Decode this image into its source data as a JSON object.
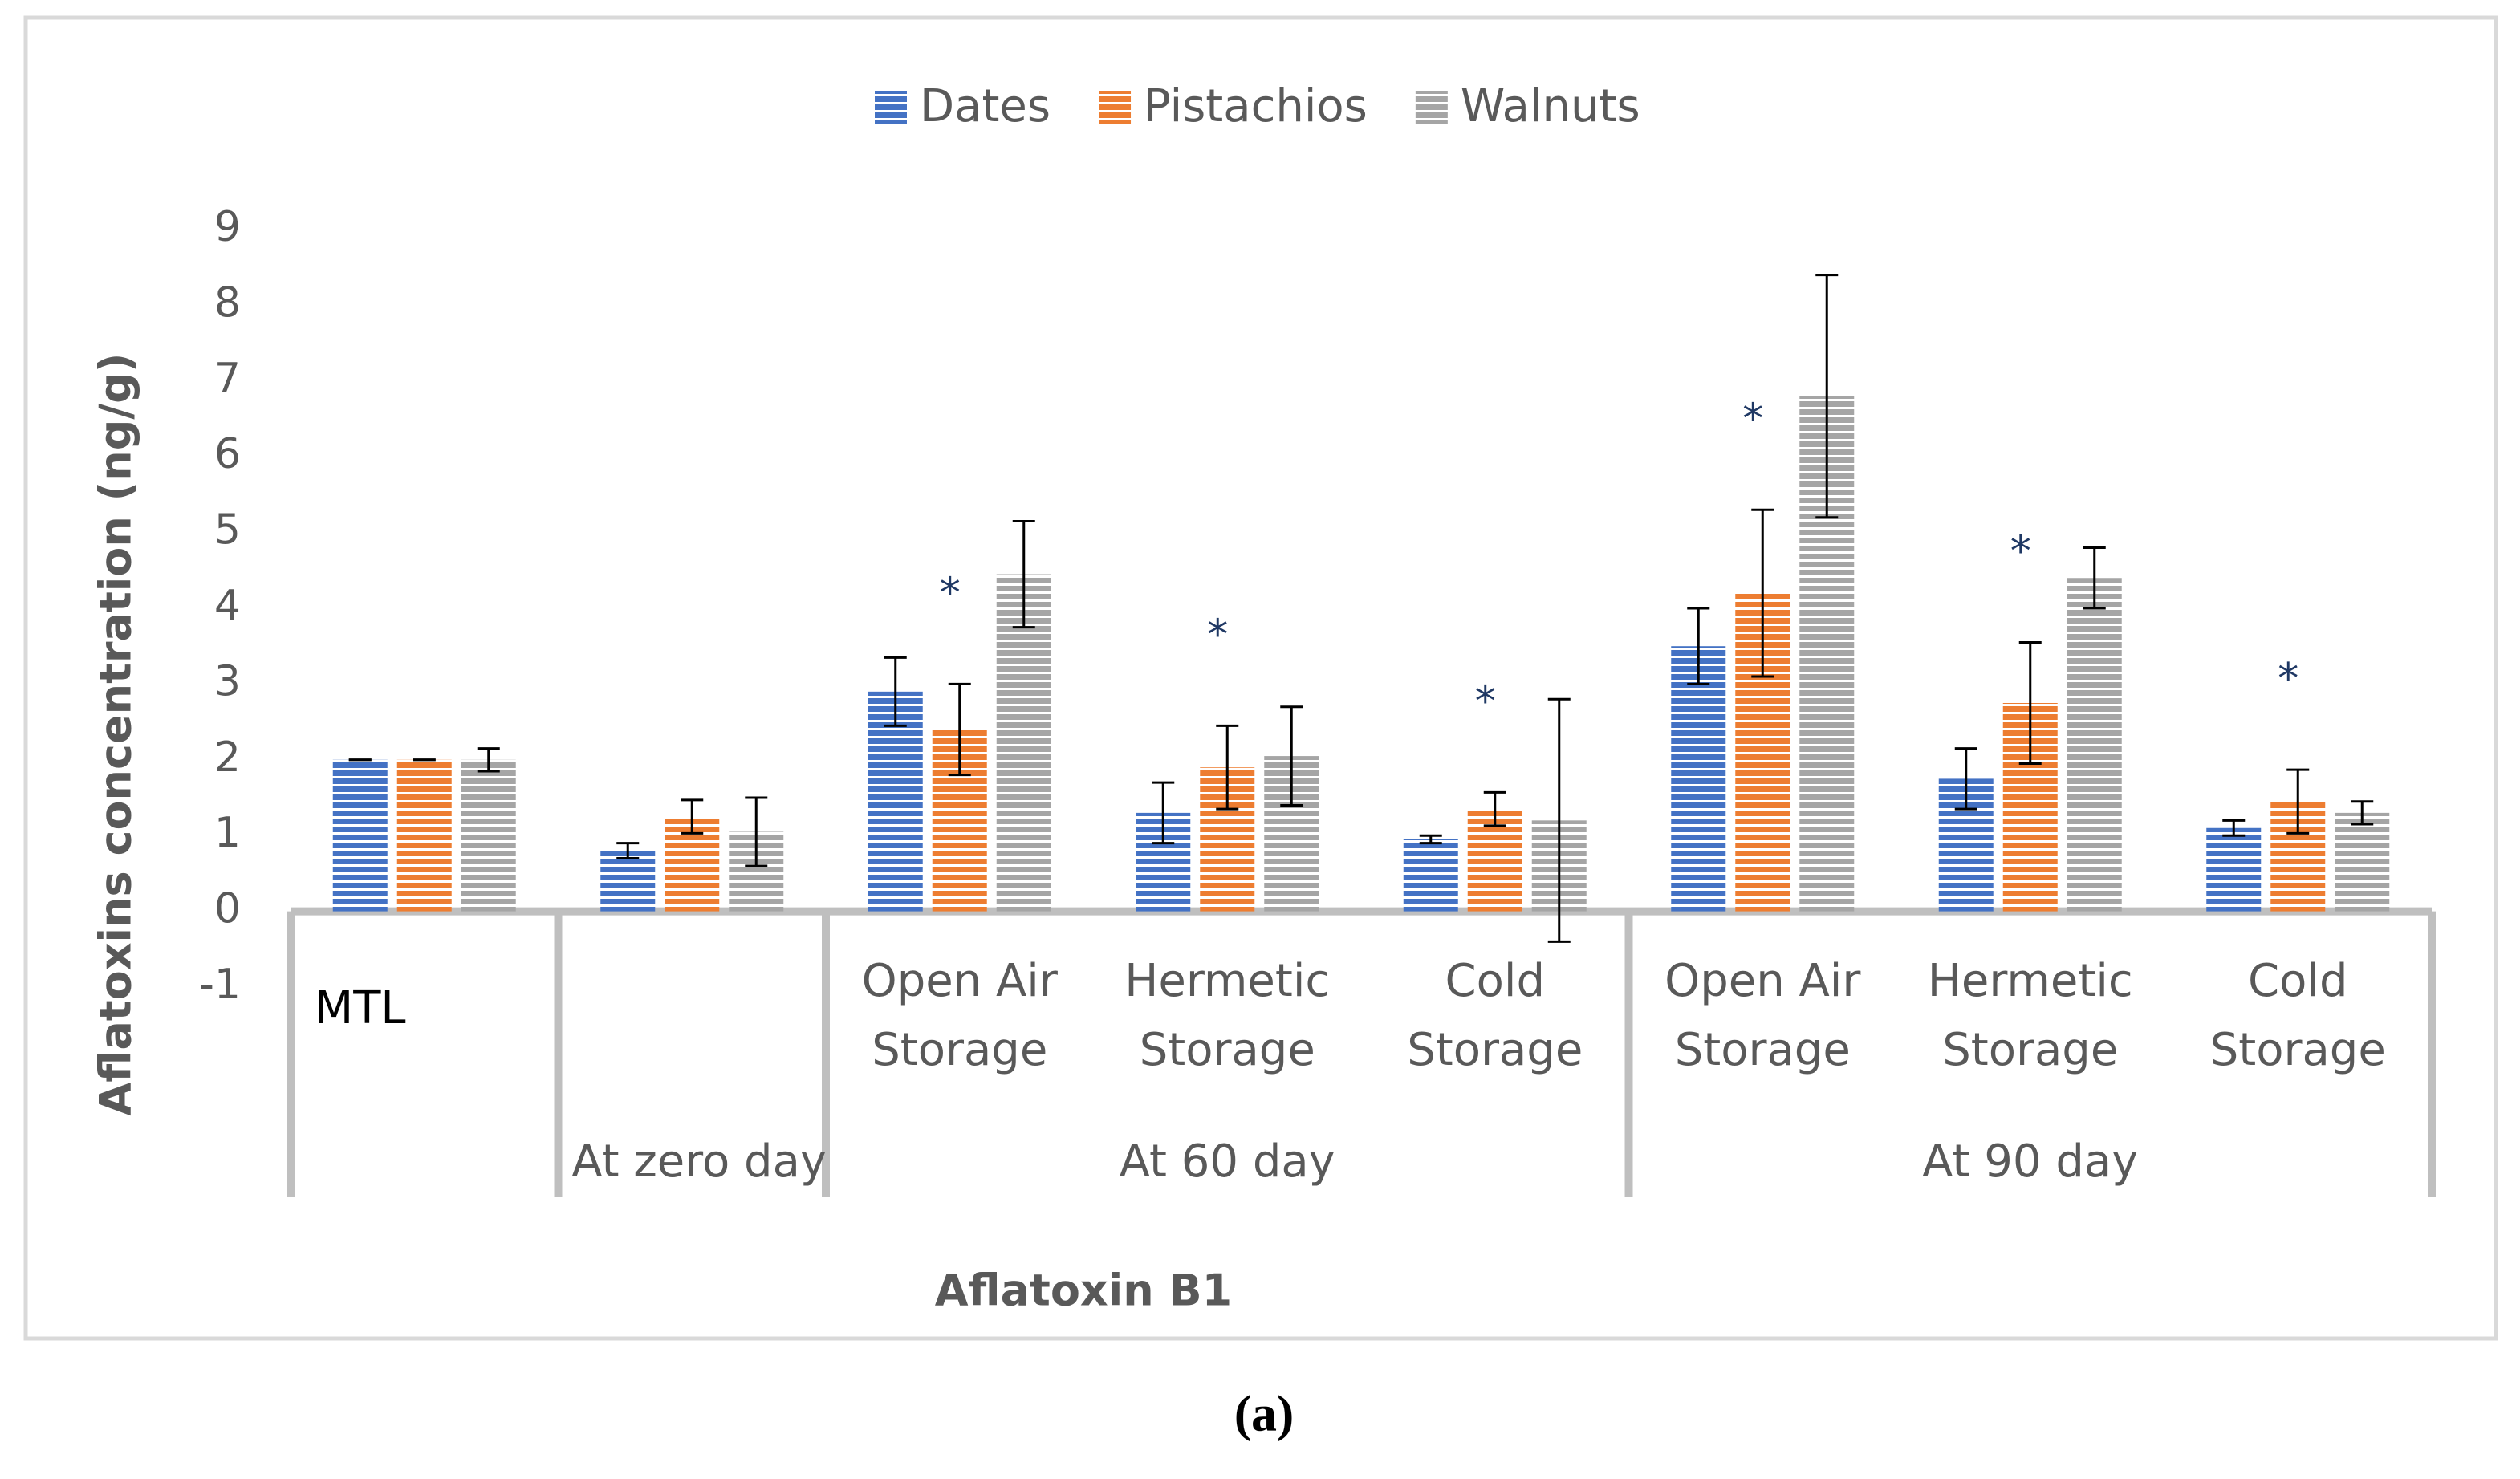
{
  "chart_data": {
    "type": "bar",
    "caption": "(a)",
    "xlabel": "Aflatoxin B1",
    "ylabel": "Aflatoxins concentration (ng/g)",
    "categories": [
      "MTL",
      null,
      "Open Air Storage",
      "Hermetic Storage",
      "Cold Storage",
      "Open Air Storage",
      "Hermetic Storage",
      "Cold Storage"
    ],
    "groups": [
      {
        "label": null,
        "span": 1
      },
      {
        "label": "At zero day",
        "span": 1
      },
      {
        "label": "At 60 day",
        "span": 3
      },
      {
        "label": "At 90 day",
        "span": 3
      }
    ],
    "series": [
      {
        "name": "Dates",
        "color": "#4472c4",
        "values": [
          2,
          0.8,
          2.9,
          1.3,
          0.95,
          3.5,
          1.75,
          1.1
        ],
        "errors": [
          0,
          0.1,
          0.45,
          0.4,
          0.05,
          0.5,
          0.4,
          0.1
        ]
      },
      {
        "name": "Pistachios",
        "color": "#ed7d31",
        "values": [
          2,
          1.25,
          2.4,
          1.9,
          1.35,
          4.2,
          2.75,
          1.45
        ],
        "errors": [
          0,
          0.22,
          0.6,
          0.55,
          0.22,
          1.1,
          0.8,
          0.42
        ]
      },
      {
        "name": "Walnuts",
        "color": "#a5a5a5",
        "values": [
          2,
          1.05,
          4.45,
          2.05,
          1.2,
          6.8,
          4.4,
          1.3
        ],
        "errors": [
          0.15,
          0.45,
          0.7,
          0.65,
          1.6,
          1.6,
          0.4,
          0.15
        ]
      }
    ],
    "significance": [
      null,
      null,
      "*",
      "*",
      "*",
      "*",
      "*",
      "*"
    ],
    "ylim": [
      -1,
      9
    ],
    "yticks": [
      -1,
      0,
      1,
      2,
      3,
      4,
      5,
      6,
      7,
      8,
      9
    ],
    "legend": "top"
  }
}
